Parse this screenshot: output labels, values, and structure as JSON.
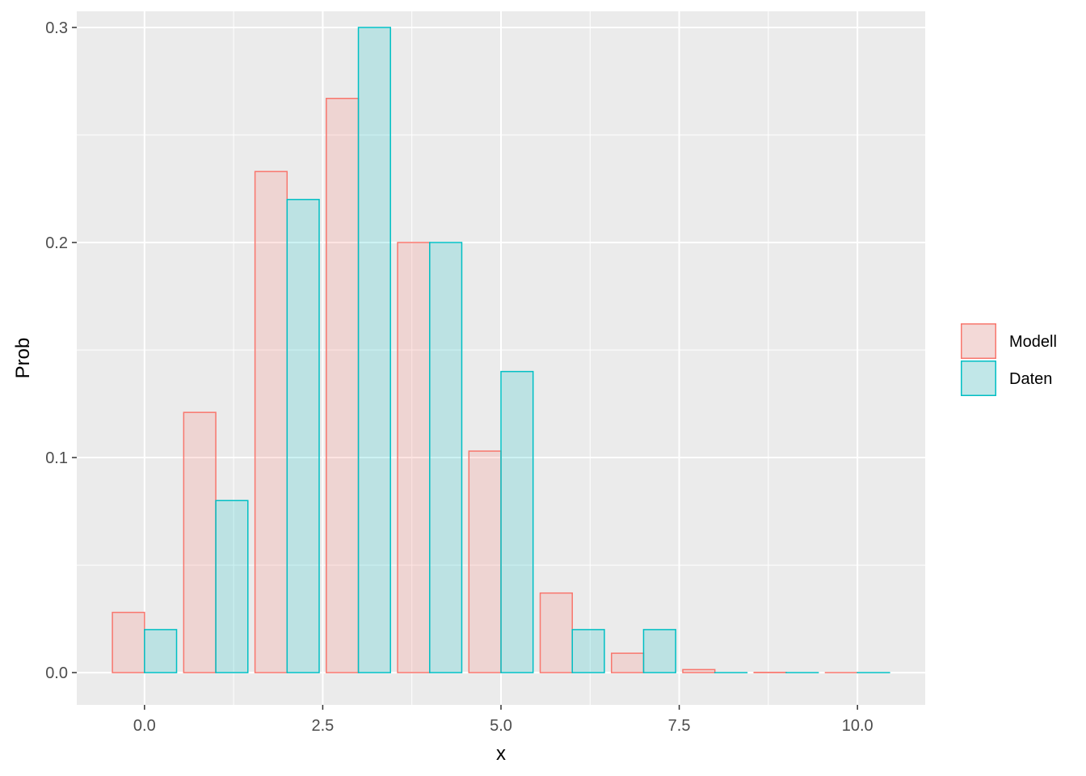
{
  "chart_data": {
    "type": "bar",
    "xlabel": "x",
    "ylabel": "Prob",
    "xlim": [
      -0.95,
      10.95
    ],
    "ylim": [
      -0.015,
      0.3075
    ],
    "x_ticks": [
      0.0,
      2.5,
      5.0,
      7.5,
      10.0
    ],
    "x_tick_labels": [
      "0.0",
      "2.5",
      "5.0",
      "7.5",
      "10.0"
    ],
    "y_ticks": [
      0.0,
      0.1,
      0.2,
      0.3
    ],
    "y_tick_labels": [
      "0.0",
      "0.1",
      "0.2",
      "0.3"
    ],
    "grid": true,
    "legend_position": "right",
    "x": [
      0,
      1,
      2,
      3,
      4,
      5,
      6,
      7,
      8,
      9,
      10
    ],
    "series": [
      {
        "name": "Modell",
        "stroke": "#F8766D",
        "fill": "#F8766D",
        "values": [
          0.028,
          0.121,
          0.233,
          0.267,
          0.2,
          0.103,
          0.037,
          0.009,
          0.0014,
          0.0001,
          0.0
        ]
      },
      {
        "name": "Daten",
        "stroke": "#00BFC4",
        "fill": "#00BFC4",
        "values": [
          0.02,
          0.08,
          0.22,
          0.3,
          0.2,
          0.14,
          0.02,
          0.02,
          0.0,
          0.0,
          0.0
        ]
      }
    ],
    "panel_background": "#EBEBEB",
    "grid_color": "#FFFFFF"
  }
}
